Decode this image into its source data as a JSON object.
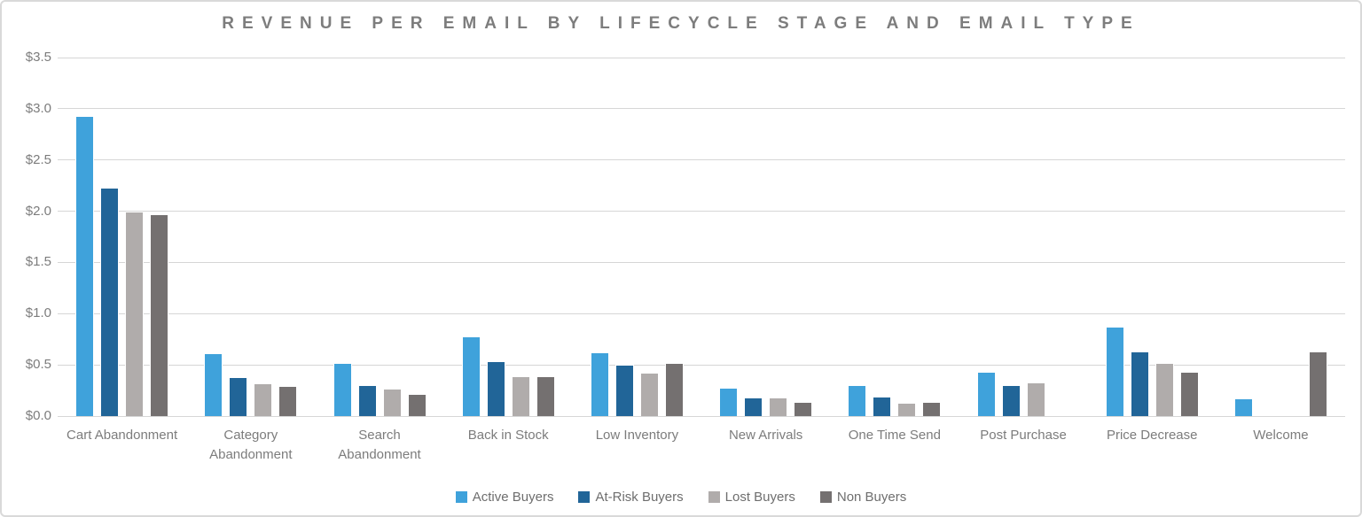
{
  "chart_data": {
    "type": "bar",
    "title": "REVENUE PER EMAIL BY LIFECYCLE STAGE AND EMAIL TYPE",
    "xlabel": "",
    "ylabel": "",
    "ylim": [
      0,
      3.5
    ],
    "grid": true,
    "legend_position": "bottom",
    "y_ticks": [
      {
        "value": 3.5,
        "label": "$3.5"
      },
      {
        "value": 3.0,
        "label": "$3.0"
      },
      {
        "value": 2.5,
        "label": "$2.5"
      },
      {
        "value": 2.0,
        "label": "$2.0"
      },
      {
        "value": 1.5,
        "label": "$1.5"
      },
      {
        "value": 1.0,
        "label": "$1.0"
      },
      {
        "value": 0.5,
        "label": "$0.5"
      },
      {
        "value": 0.0,
        "label": "$0.0"
      }
    ],
    "categories": [
      "Cart Abandonment",
      "Category Abandonment",
      "Search Abandonment",
      "Back in Stock",
      "Low Inventory",
      "New Arrivals",
      "One Time Send",
      "Post Purchase",
      "Price Decrease",
      "Welcome"
    ],
    "series": [
      {
        "name": "Active Buyers",
        "color": "#3FA2DB",
        "values": [
          2.93,
          0.61,
          0.52,
          0.78,
          0.62,
          0.28,
          0.3,
          0.43,
          0.87,
          0.17
        ]
      },
      {
        "name": "At-Risk Buyers",
        "color": "#216598",
        "values": [
          2.23,
          0.38,
          0.3,
          0.54,
          0.5,
          0.18,
          0.19,
          0.3,
          0.63,
          0
        ]
      },
      {
        "name": "Lost Buyers",
        "color": "#B0ACAB",
        "values": [
          2.0,
          0.32,
          0.27,
          0.39,
          0.42,
          0.18,
          0.13,
          0.33,
          0.52,
          0
        ]
      },
      {
        "name": "Non Buyers",
        "color": "#747070",
        "values": [
          1.97,
          0.29,
          0.22,
          0.39,
          0.52,
          0.14,
          0.14,
          0,
          0.43,
          0.63
        ]
      }
    ],
    "colors": {
      "gridline": "#D6D6D6",
      "axis_text": "#7C7C7C",
      "legend_text": "#6E6E6E",
      "title_text": "#7D7D7D",
      "card_border": "#D9D9D9",
      "background": "#FFFFFF"
    }
  }
}
